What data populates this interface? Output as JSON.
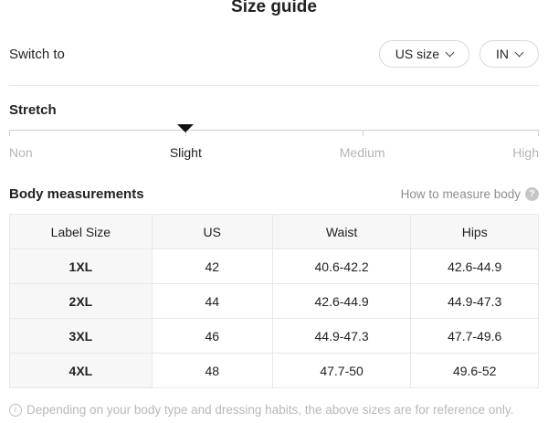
{
  "title": "Size guide",
  "switch_row": {
    "label": "Switch to",
    "size_dropdown": {
      "value": "US size"
    },
    "unit_dropdown": {
      "value": "IN"
    }
  },
  "stretch": {
    "label": "Stretch",
    "options": [
      {
        "label": "Non",
        "selected": false
      },
      {
        "label": "Slight",
        "selected": true
      },
      {
        "label": "Medium",
        "selected": false
      },
      {
        "label": "High",
        "selected": false
      }
    ]
  },
  "body_measurements": {
    "heading": "Body measurements",
    "how_to_link": "How to measure body"
  },
  "table": {
    "headers": [
      "Label Size",
      "US",
      "Waist",
      "Hips"
    ],
    "rows": [
      [
        "1XL",
        "42",
        "40.6-42.2",
        "42.6-44.9"
      ],
      [
        "2XL",
        "44",
        "42.6-44.9",
        "44.9-47.3"
      ],
      [
        "3XL",
        "46",
        "44.9-47.3",
        "47.7-49.6"
      ],
      [
        "4XL",
        "48",
        "47.7-50",
        "49.6-52"
      ]
    ]
  },
  "footer_note": "Depending on your body type and dressing habits, the above sizes are for reference only.",
  "colors": {
    "text": "#222222",
    "muted_label": "#b5b5b5",
    "link_gray": "#8e8e8e",
    "table_border": "#e8e8e8",
    "cell_bg": "#f7f7f7",
    "marker": "#111111"
  }
}
